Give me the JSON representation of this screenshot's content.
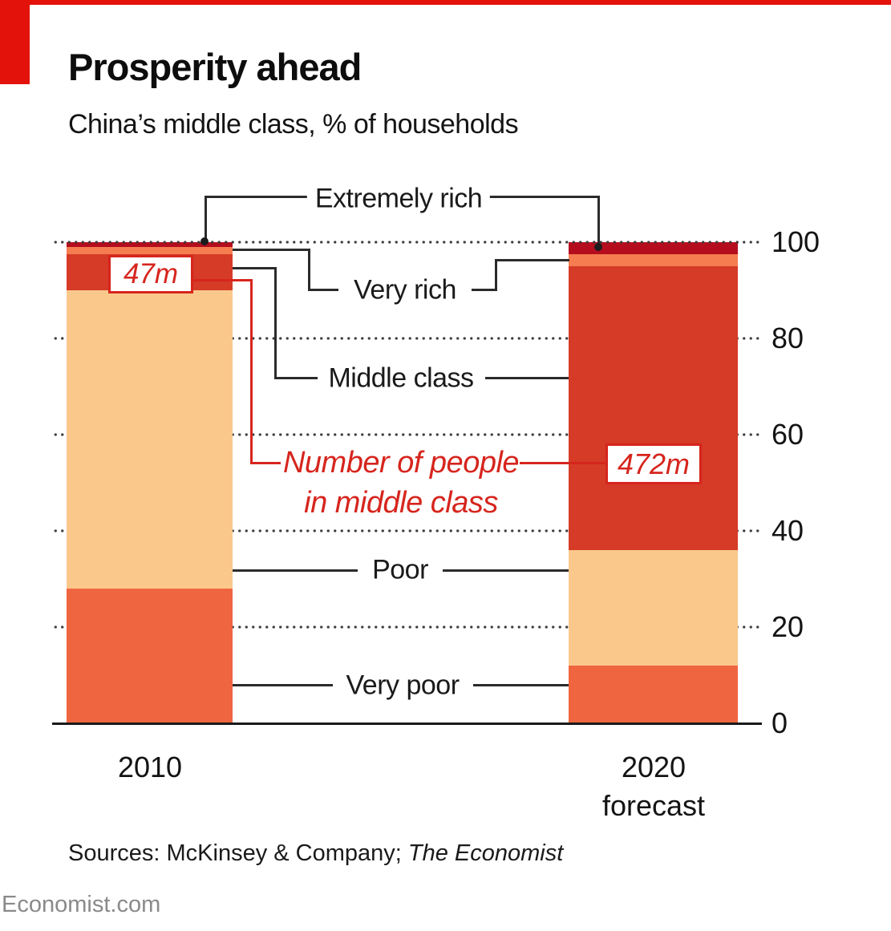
{
  "header": {
    "title": "Prosperity ahead",
    "subtitle": "China’s middle class, % of households"
  },
  "chart_data": {
    "type": "bar",
    "stacked": true,
    "title": "Prosperity ahead",
    "subtitle": "China's middle class, % of households",
    "categories": [
      "2010",
      "2020 forecast"
    ],
    "series": [
      {
        "name": "Very poor",
        "values": [
          28,
          12
        ],
        "color": "#ef6540"
      },
      {
        "name": "Poor",
        "values": [
          62,
          24
        ],
        "color": "#fbc88c"
      },
      {
        "name": "Middle class",
        "values": [
          7.5,
          59
        ],
        "color": "#d53b27"
      },
      {
        "name": "Very rich",
        "values": [
          1.5,
          2.5
        ],
        "color": "#f57d50"
      },
      {
        "name": "Extremely rich",
        "values": [
          1,
          2.5
        ],
        "color": "#b50d1e"
      }
    ],
    "ylabel": "% of households",
    "ylim": [
      0,
      100
    ],
    "yticks": [
      0,
      20,
      40,
      60,
      80,
      100
    ],
    "grid": "dotted horizontal, baseline solid",
    "legend_position": "inline labels with elbow connectors",
    "annotations": {
      "note_line1": "Number of people",
      "note_line2": "in middle class",
      "middle_class_people": [
        {
          "category": "2010",
          "value": "47m"
        },
        {
          "category": "2020 forecast",
          "value": "472m"
        }
      ]
    }
  },
  "labels": {
    "extremely_rich": "Extremely rich",
    "very_rich": "Very rich",
    "middle_class": "Middle class",
    "poor": "Poor",
    "very_poor": "Very poor",
    "value_2010": "47m",
    "value_2020": "472m",
    "note_line1": "Number of people",
    "note_line2": "in middle class"
  },
  "x_axis": {
    "label_2010": "2010",
    "label_2020_line1": "2020",
    "label_2020_line2": "forecast"
  },
  "y_axis": {
    "tick_labels": [
      "100",
      "80",
      "60",
      "40",
      "20",
      "0"
    ]
  },
  "footer": {
    "sources_prefix": "Sources: McKinsey & Company; ",
    "sources_italic": "The Economist",
    "site": "Economist.com"
  },
  "colors": {
    "economist_red": "#e3120b",
    "annotation_red": "#d6251d",
    "extremely_rich": "#b50d1e",
    "very_rich": "#f57d50",
    "middle_class": "#d53b27",
    "poor": "#fbc88c",
    "very_poor": "#ef6540",
    "grid_dot": "#3b3b3b",
    "text": "#121212",
    "site_gray": "#8a8a8a"
  }
}
